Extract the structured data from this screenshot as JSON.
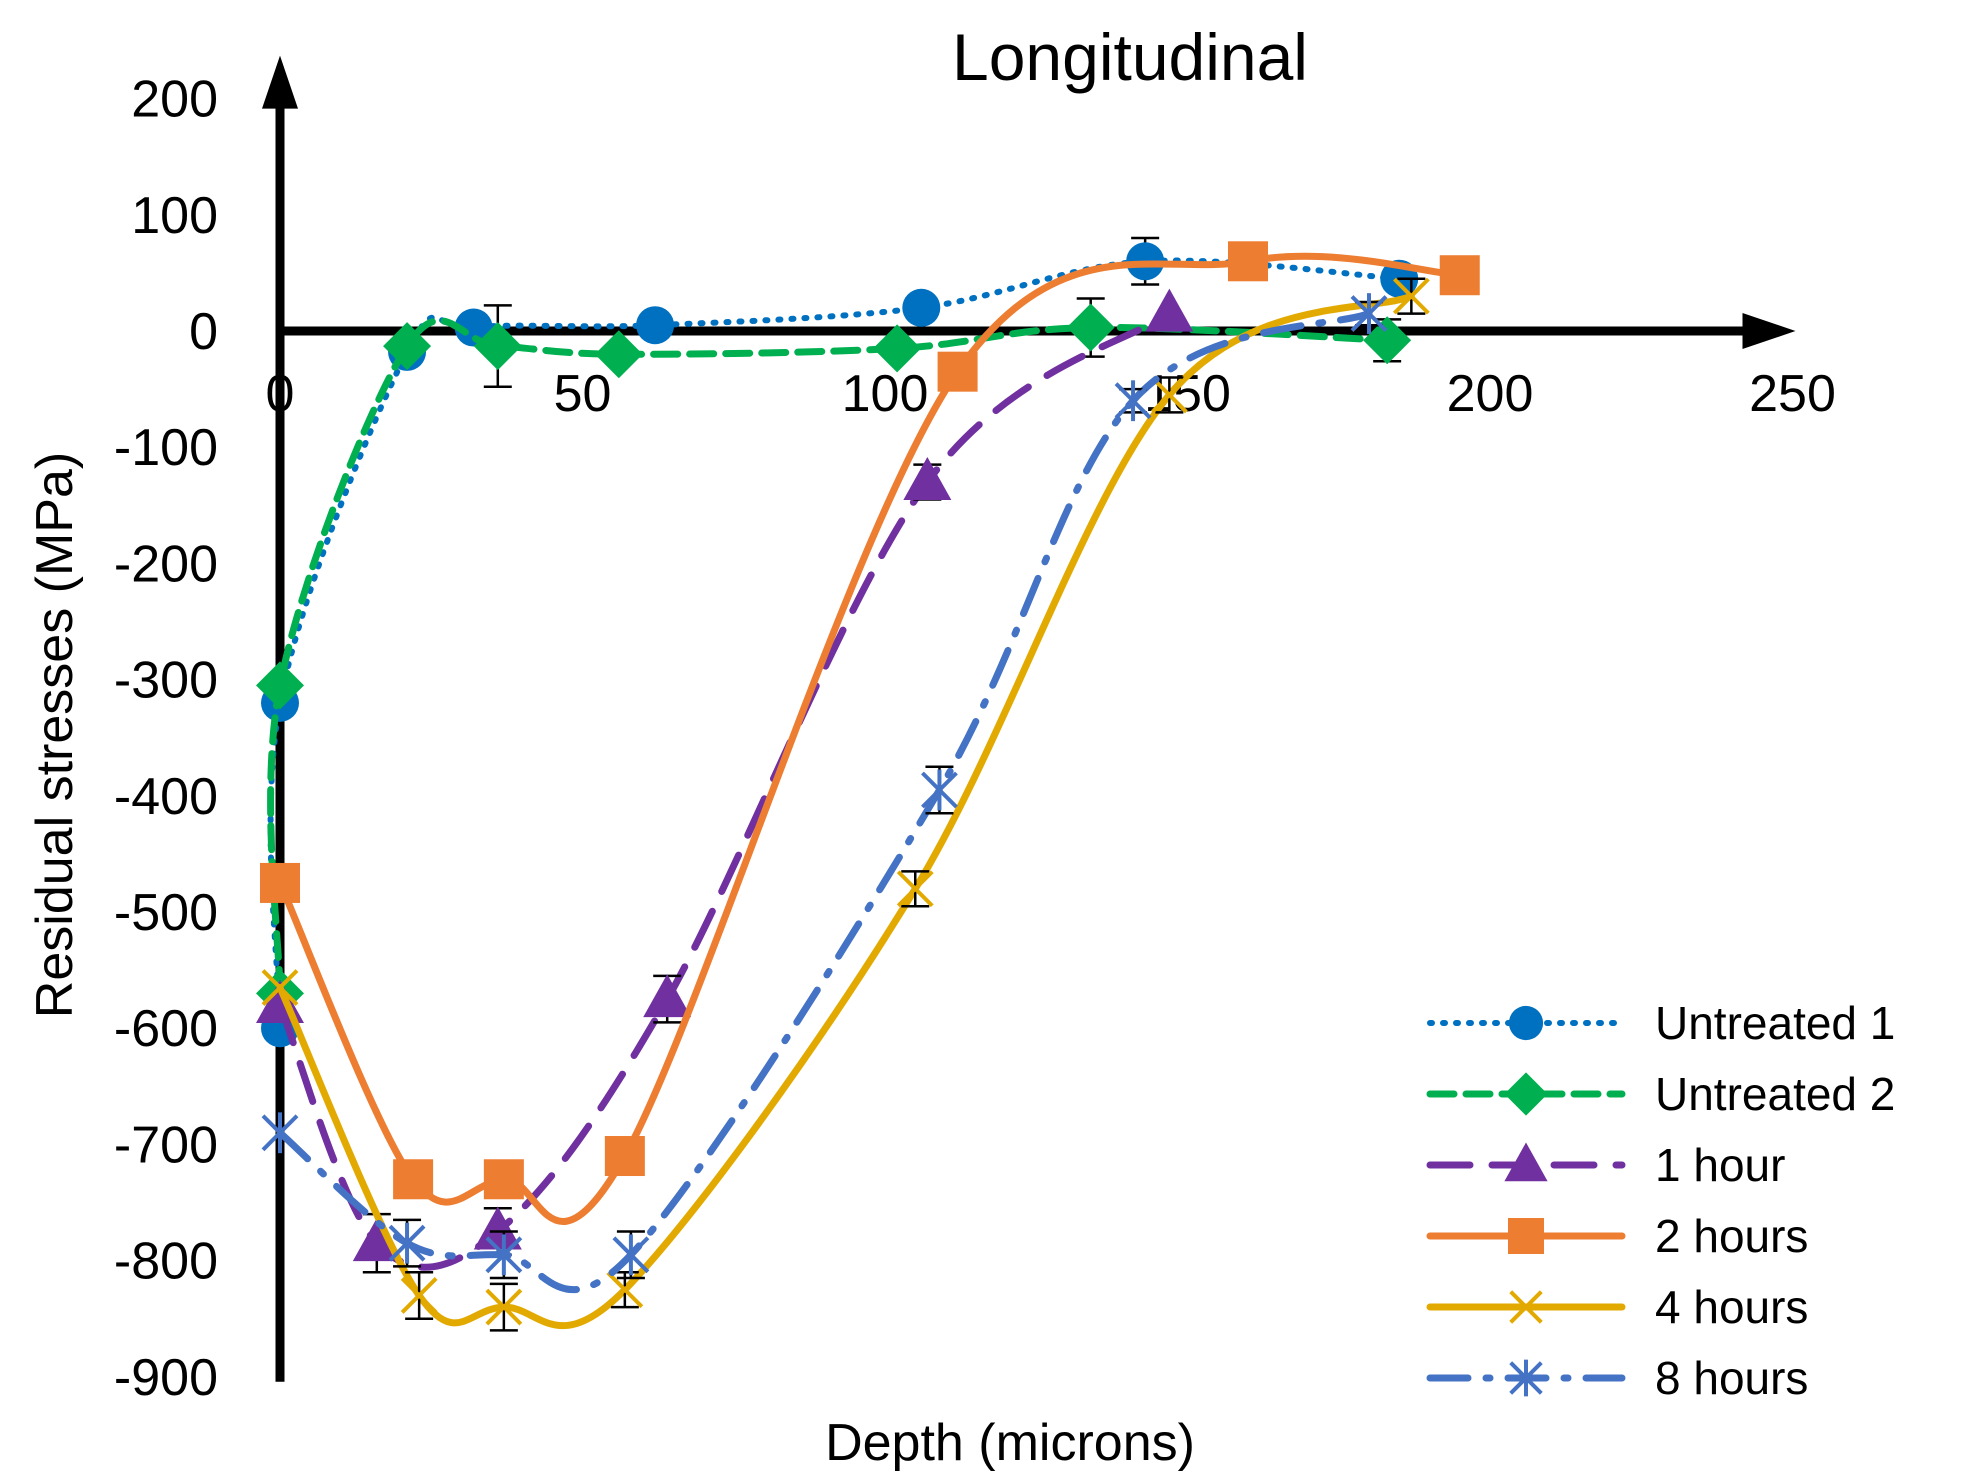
{
  "chart_data": {
    "type": "line",
    "title": "Longitudinal",
    "xlabel": "Depth (microns)",
    "ylabel": "Residual stresses (MPa)",
    "xlim": [
      0,
      250
    ],
    "ylim": [
      -900,
      200
    ],
    "xticks": [
      0,
      50,
      100,
      150,
      200,
      250
    ],
    "yticks": [
      200,
      100,
      0,
      -100,
      -200,
      -300,
      -400,
      -500,
      -600,
      -700,
      -800,
      -900
    ],
    "grid": false,
    "legend_position": "bottom-right",
    "series": [
      {
        "name": "Untreated 1",
        "color": "#0070C0",
        "dash": "dotted",
        "marker": "circle",
        "x": [
          0,
          0,
          21,
          32,
          62,
          106,
          143,
          185
        ],
        "y": [
          -600,
          -320,
          -18,
          3,
          5,
          20,
          60,
          45
        ],
        "err": [
          0,
          0,
          0,
          0,
          0,
          0,
          20,
          0
        ]
      },
      {
        "name": "Untreated 2",
        "color": "#00B050",
        "dash": "dashed",
        "marker": "diamond",
        "x": [
          0,
          0,
          21,
          36,
          56,
          102,
          134,
          183
        ],
        "y": [
          -570,
          -305,
          -13,
          -13,
          -20,
          -15,
          3,
          -8
        ],
        "err": [
          0,
          0,
          0,
          35,
          0,
          0,
          25,
          18
        ]
      },
      {
        "name": "1 hour",
        "color": "#7030A0",
        "dash": "longdash",
        "marker": "triangle",
        "x": [
          0,
          16,
          36,
          64,
          107,
          147
        ],
        "y": [
          -580,
          -785,
          -775,
          -575,
          -130,
          15
        ],
        "err": [
          0,
          25,
          20,
          20,
          15,
          0
        ]
      },
      {
        "name": "2 hours",
        "color": "#ED7D31",
        "dash": "solid",
        "marker": "square",
        "x": [
          0,
          22,
          37,
          57,
          112,
          160,
          195
        ],
        "y": [
          -475,
          -730,
          -730,
          -710,
          -35,
          60,
          48
        ],
        "err": [
          0,
          0,
          0,
          0,
          0,
          0,
          0
        ]
      },
      {
        "name": "4 hours",
        "color": "#E2AA00",
        "dash": "solid",
        "marker": "x",
        "x": [
          0,
          23,
          37,
          57,
          105,
          147,
          187
        ],
        "y": [
          -565,
          -830,
          -840,
          -825,
          -480,
          -55,
          30
        ],
        "err": [
          0,
          20,
          20,
          15,
          15,
          15,
          15
        ]
      },
      {
        "name": "8 hours",
        "color": "#4472C4",
        "dash": "dashdot",
        "marker": "asterisk",
        "x": [
          0,
          21,
          37,
          58,
          109,
          141,
          180
        ],
        "y": [
          -690,
          -785,
          -795,
          -795,
          -395,
          -60,
          15
        ],
        "err": [
          0,
          20,
          20,
          20,
          20,
          10,
          10
        ]
      }
    ]
  }
}
